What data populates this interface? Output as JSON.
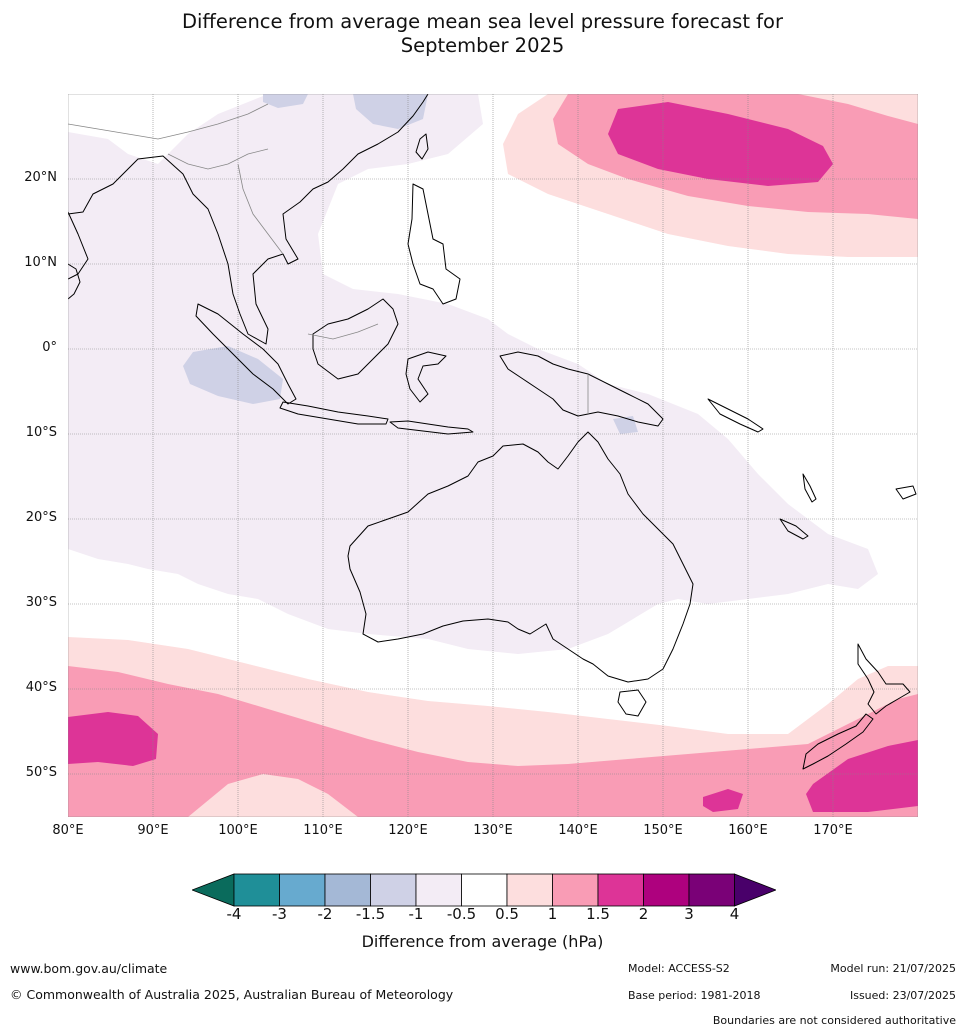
{
  "title_line1": "Difference from average mean sea level pressure forecast for",
  "title_line2": "September 2025",
  "lat_labels": [
    "20°N",
    "10°N",
    "0°",
    "10°S",
    "20°S",
    "30°S",
    "40°S",
    "50°S"
  ],
  "lon_labels": [
    "80°E",
    "90°E",
    "100°E",
    "110°E",
    "120°E",
    "130°E",
    "140°E",
    "150°E",
    "160°E",
    "170°E"
  ],
  "colorbar": {
    "title": "Difference from average (hPa)",
    "ticks": [
      "-4",
      "-3",
      "-2",
      "-1.5",
      "-1",
      "-0.5",
      "0.5",
      "1",
      "1.5",
      "2",
      "3",
      "4"
    ],
    "colors": {
      "below_-4": "#0a6b5c",
      "-4_-3": "#1f8f98",
      "-3_-2": "#67aacf",
      "-2_-1.5": "#a4b8d6",
      "-1.5_-1": "#cfd1e6",
      "-1_-0.5": "#f3ecf5",
      "-0.5_0.5": "#ffffff",
      "0.5_1": "#fddede",
      "1_1.5": "#f99cb5",
      "1.5_2": "#dd3497",
      "2_3": "#ae017e",
      "3_4": "#7a0177",
      "above_4": "#49006a"
    }
  },
  "footer": {
    "website": "www.bom.gov.au/climate",
    "copyright": "© Commonwealth of Australia 2025, Australian Bureau of Meteorology",
    "model": "Model: ACCESS-S2",
    "base_period": "Base period: 1981-2018",
    "model_run": "Model run: 21/07/2025",
    "issued": "Issued: 23/07/2025",
    "boundaries": "Boundaries are not considered authoritative"
  }
}
